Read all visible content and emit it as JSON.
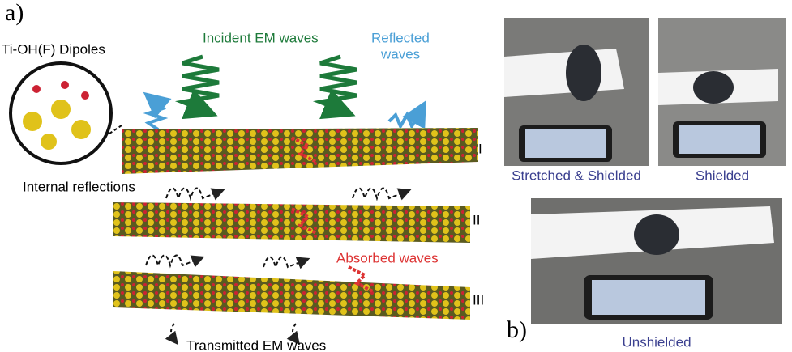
{
  "panel_a": {
    "label": "a)",
    "dipoles": "Ti-OH(F) Dipoles",
    "incident": "Incident EM waves",
    "reflected": [
      "Reflected",
      "waves"
    ],
    "internal": "Internal reflections",
    "absorbed": "Absorbed waves",
    "transmitted": "Transmitted EM waves",
    "layers": [
      "I",
      "II",
      "III"
    ]
  },
  "panel_b": {
    "label": "b)",
    "captions": [
      "Stretched & Shielded",
      "Shielded",
      "Unshielded"
    ]
  }
}
